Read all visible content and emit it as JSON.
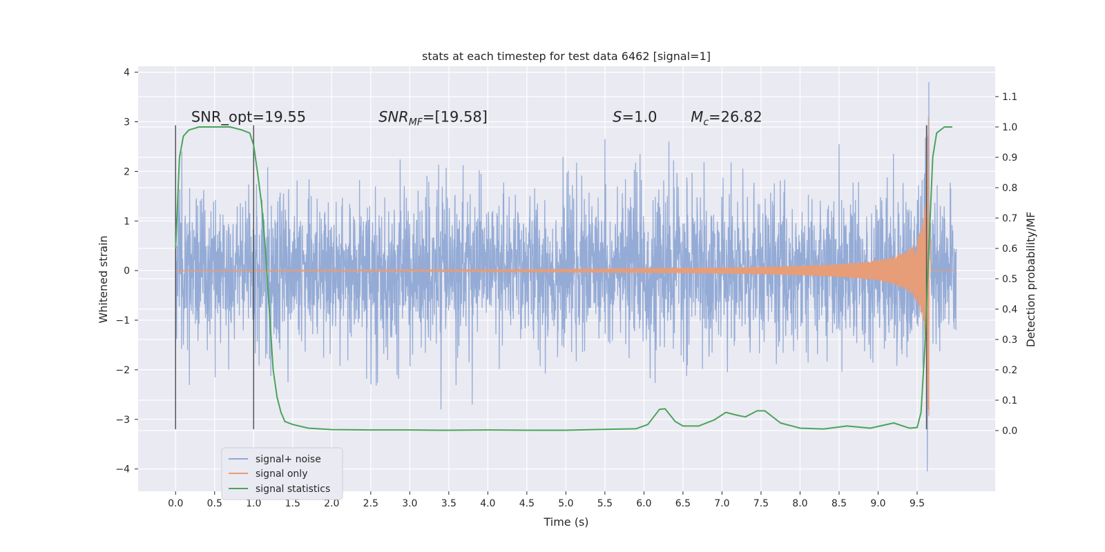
{
  "chart_data": {
    "type": "line",
    "title": "stats at each timestep for test data 6462 [signal=1]",
    "xlabel": "Time (s)",
    "ylabel": "Whitened strain",
    "ylabel_right": "Detection probability/MF",
    "xlim": [
      -0.48,
      10.5
    ],
    "ylim": [
      -4.45,
      4.12
    ],
    "ylim_right": [
      -0.2,
      1.2
    ],
    "x_ticks": [
      "0.0",
      "0.5",
      "1.0",
      "1.5",
      "2.0",
      "2.5",
      "3.0",
      "3.5",
      "4.0",
      "4.5",
      "5.0",
      "5.5",
      "6.0",
      "6.5",
      "7.0",
      "7.5",
      "8.0",
      "8.5",
      "9.0",
      "9.5"
    ],
    "y_ticks": [
      "−4",
      "−3",
      "−2",
      "−1",
      "0",
      "1",
      "2",
      "3",
      "4"
    ],
    "y_ticks_right": [
      "0.0",
      "0.1",
      "0.2",
      "0.3",
      "0.4",
      "0.5",
      "0.6",
      "0.7",
      "0.8",
      "0.9",
      "1.0",
      "1.1"
    ],
    "grid": true,
    "legend_position": "lower-left",
    "annotations": [
      {
        "text": "SNR_opt=19.55",
        "x": 0.2,
        "y": 3.0
      },
      {
        "text": "SNR",
        "sub": "MF",
        "after": "=[19.58]",
        "x": 2.6,
        "y": 3.0,
        "italic": true
      },
      {
        "text": "S",
        "after": "=1.0",
        "x": 5.6,
        "y": 3.0,
        "italic": true
      },
      {
        "text": "M",
        "sub": "c",
        "after": "=26.82",
        "x": 6.6,
        "y": 3.0,
        "italic": true
      }
    ],
    "vertical_lines": [
      {
        "x": 0.0,
        "y_range": [
          -3.2,
          2.93
        ]
      },
      {
        "x": 1.0,
        "y_range": [
          -3.2,
          2.93
        ]
      },
      {
        "x": 9.62,
        "y_range": [
          -3.2,
          2.93
        ]
      }
    ],
    "series": [
      {
        "name": "signal+ noise",
        "color": "#8fa8d4",
        "kind": "noise",
        "x_range": [
          0.0,
          10.0
        ],
        "envelope": {
          "typical": 1.1,
          "peak": 2.4
        },
        "extremes": [
          {
            "x": 0.08,
            "y": 2.4
          },
          {
            "x": 5.5,
            "y": 2.65
          },
          {
            "x": 5.95,
            "y": 2.35
          },
          {
            "x": 6.32,
            "y": 2.6
          },
          {
            "x": 8.5,
            "y": 2.55
          },
          {
            "x": 9.65,
            "y": 3.8
          },
          {
            "x": 9.63,
            "y": -4.05
          },
          {
            "x": 3.4,
            "y": -2.8
          },
          {
            "x": 3.8,
            "y": -2.7
          }
        ]
      },
      {
        "name": "signal only",
        "color": "#e79d78",
        "kind": "chirp",
        "t_merge": 9.66,
        "amplitude_early": 0.01,
        "amplitude_late": 3.1
      },
      {
        "name": "signal statistics",
        "color": "#4aa35a",
        "kind": "line",
        "axis": "right",
        "points": [
          [
            0.0,
            0.6
          ],
          [
            0.05,
            0.9
          ],
          [
            0.1,
            0.97
          ],
          [
            0.17,
            0.99
          ],
          [
            0.3,
            1.0
          ],
          [
            0.5,
            1.0
          ],
          [
            0.7,
            1.0
          ],
          [
            0.85,
            0.99
          ],
          [
            0.95,
            0.98
          ],
          [
            1.0,
            0.94
          ],
          [
            1.05,
            0.85
          ],
          [
            1.1,
            0.75
          ],
          [
            1.15,
            0.6
          ],
          [
            1.2,
            0.4
          ],
          [
            1.25,
            0.2
          ],
          [
            1.3,
            0.11
          ],
          [
            1.35,
            0.06
          ],
          [
            1.4,
            0.03
          ],
          [
            1.5,
            0.02
          ],
          [
            1.7,
            0.008
          ],
          [
            2.0,
            0.003
          ],
          [
            2.5,
            0.002
          ],
          [
            3.0,
            0.002
          ],
          [
            3.5,
            0.001
          ],
          [
            4.0,
            0.002
          ],
          [
            4.5,
            0.001
          ],
          [
            5.0,
            0.001
          ],
          [
            5.5,
            0.004
          ],
          [
            5.9,
            0.006
          ],
          [
            6.05,
            0.02
          ],
          [
            6.2,
            0.07
          ],
          [
            6.27,
            0.072
          ],
          [
            6.4,
            0.03
          ],
          [
            6.5,
            0.015
          ],
          [
            6.7,
            0.015
          ],
          [
            6.9,
            0.035
          ],
          [
            7.05,
            0.06
          ],
          [
            7.2,
            0.05
          ],
          [
            7.3,
            0.045
          ],
          [
            7.45,
            0.065
          ],
          [
            7.55,
            0.065
          ],
          [
            7.75,
            0.025
          ],
          [
            8.0,
            0.008
          ],
          [
            8.3,
            0.005
          ],
          [
            8.6,
            0.015
          ],
          [
            8.9,
            0.008
          ],
          [
            9.2,
            0.025
          ],
          [
            9.4,
            0.008
          ],
          [
            9.5,
            0.01
          ],
          [
            9.55,
            0.06
          ],
          [
            9.6,
            0.28
          ],
          [
            9.65,
            0.6
          ],
          [
            9.7,
            0.9
          ],
          [
            9.75,
            0.98
          ],
          [
            9.85,
            1.0
          ],
          [
            9.95,
            1.0
          ]
        ]
      }
    ]
  }
}
